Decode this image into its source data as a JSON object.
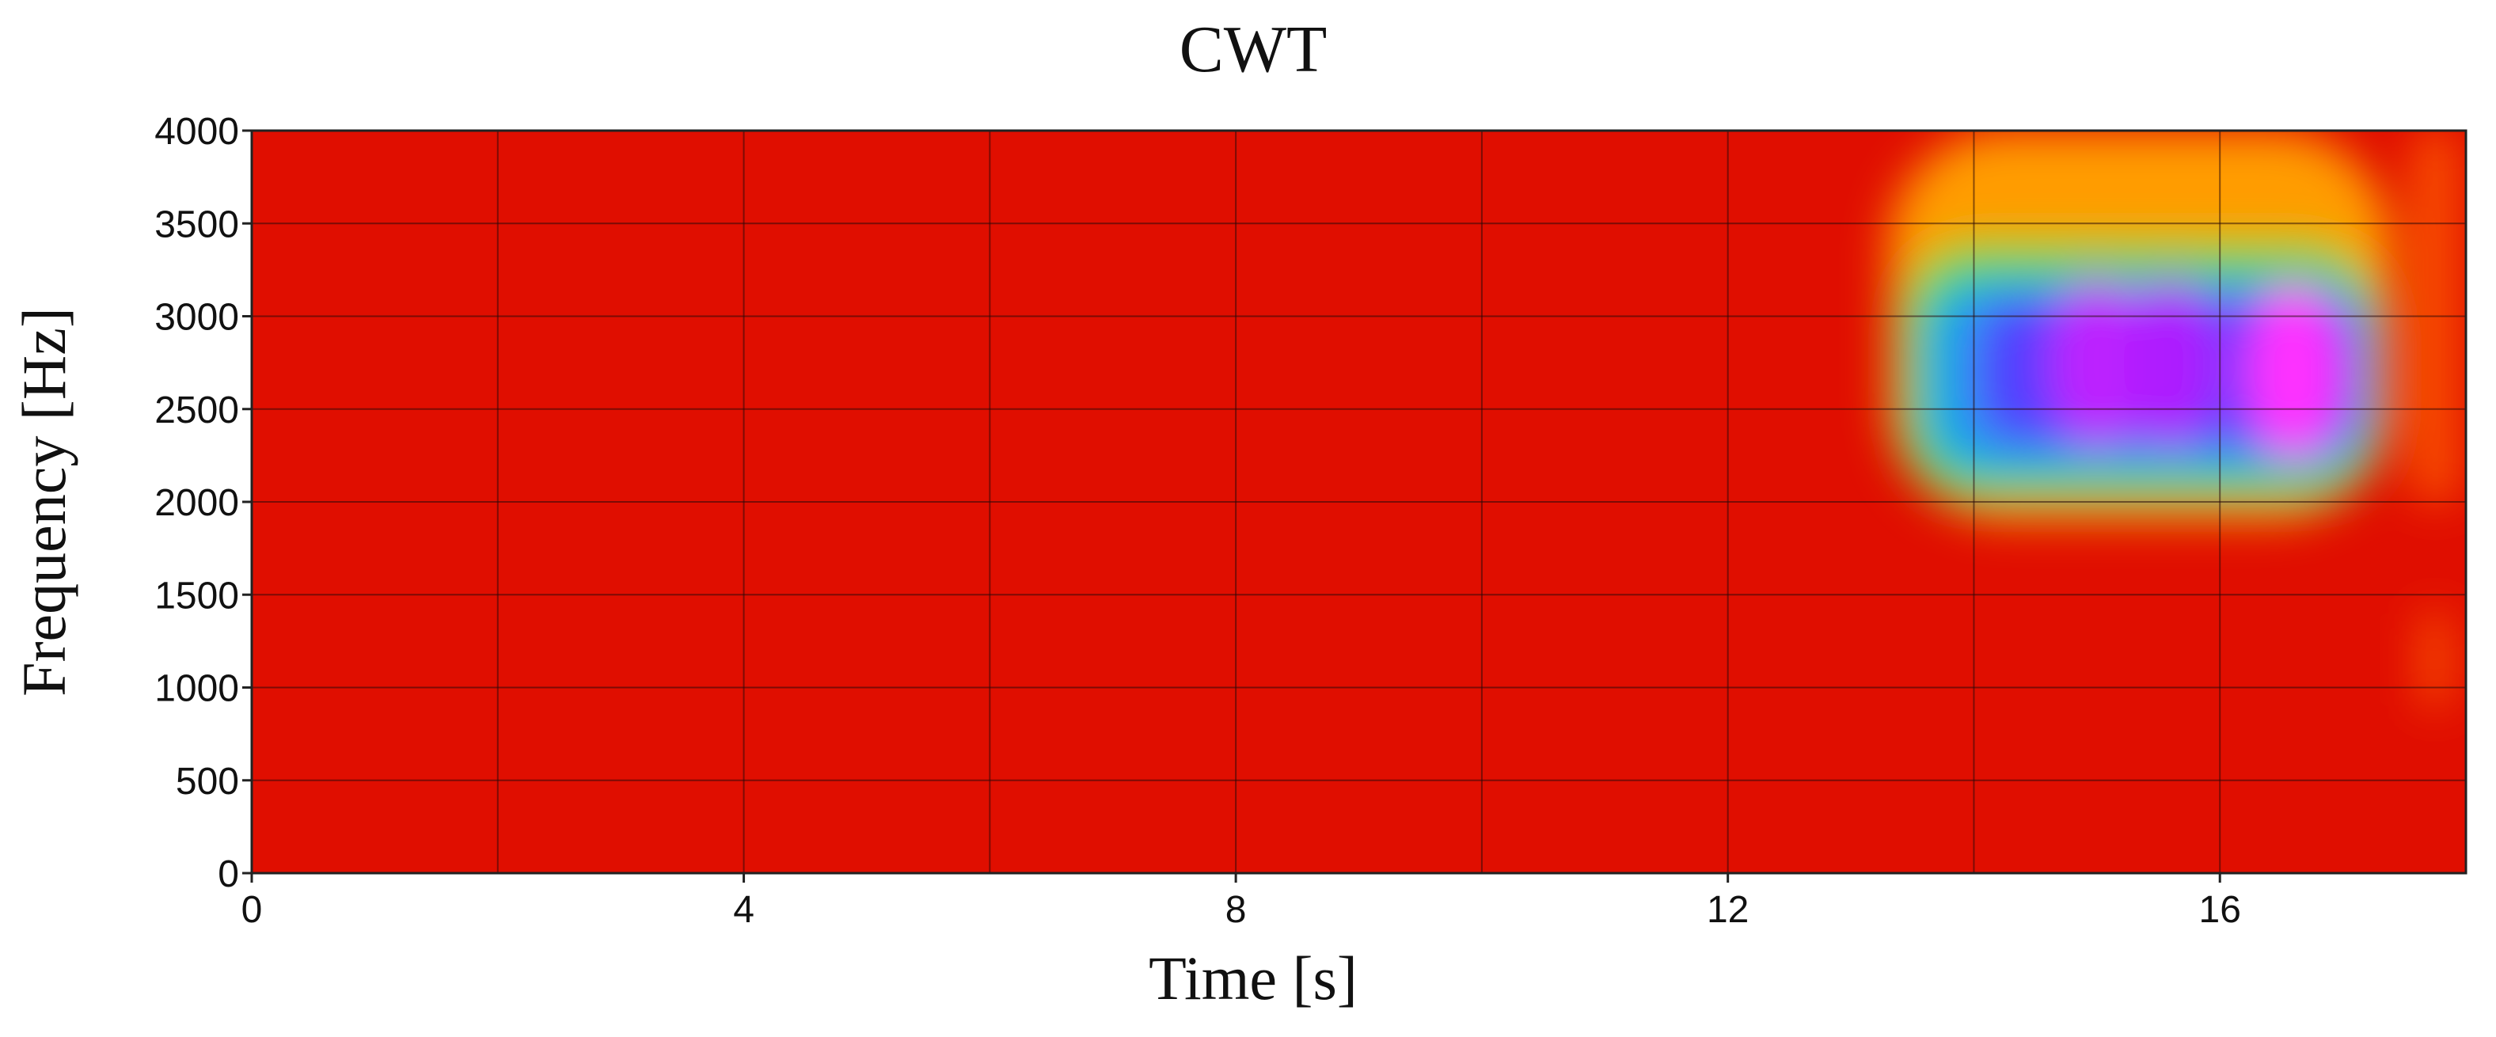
{
  "chart_data": {
    "type": "heatmap",
    "title": "CWT",
    "xlabel": "Time [s]",
    "ylabel": "Frequency [Hz]",
    "xlim": [
      0,
      18
    ],
    "ylim": [
      0,
      4000
    ],
    "x_ticks": [
      0,
      4,
      8,
      12,
      16
    ],
    "y_ticks": [
      0,
      500,
      1000,
      1500,
      2000,
      2500,
      3000,
      3500,
      4000
    ],
    "x_grid": [
      0,
      2,
      4,
      6,
      8,
      10,
      12,
      14,
      16,
      18
    ],
    "grid": true,
    "colormap": [
      "#cc0000",
      "#ff2200",
      "#ff8800",
      "#ffdd00",
      "#33dd33",
      "#00dddd",
      "#1e5bff",
      "#9a1aff",
      "#ff33ff"
    ],
    "background_level": 0.05,
    "features": [
      {
        "kind": "blob",
        "x_range": [
          13.3,
          17.4
        ],
        "y_range": [
          1900,
          4000
        ],
        "level": 0.28
      },
      {
        "kind": "blob",
        "x_range": [
          13.4,
          17.3
        ],
        "y_range": [
          2000,
          3400
        ],
        "level": 0.48
      },
      {
        "kind": "blob",
        "x_range": [
          13.6,
          17.2
        ],
        "y_range": [
          2150,
          3200
        ],
        "level": 0.68
      },
      {
        "kind": "blob",
        "x_range": [
          14.0,
          17.2
        ],
        "y_range": [
          2300,
          3100
        ],
        "level": 0.8
      },
      {
        "kind": "spot",
        "x": 15.0,
        "y": 2750,
        "level": 0.92
      },
      {
        "kind": "spot",
        "x": 15.6,
        "y": 2750,
        "level": 0.9
      },
      {
        "kind": "spot",
        "x": 16.6,
        "y": 2700,
        "level": 1.0
      },
      {
        "kind": "blob",
        "x_range": [
          17.6,
          17.9
        ],
        "y_range": [
          2000,
          4000
        ],
        "level": 0.2
      },
      {
        "kind": "blob",
        "x_range": [
          17.65,
          17.85
        ],
        "y_range": [
          900,
          1400
        ],
        "level": 0.2
      }
    ]
  }
}
